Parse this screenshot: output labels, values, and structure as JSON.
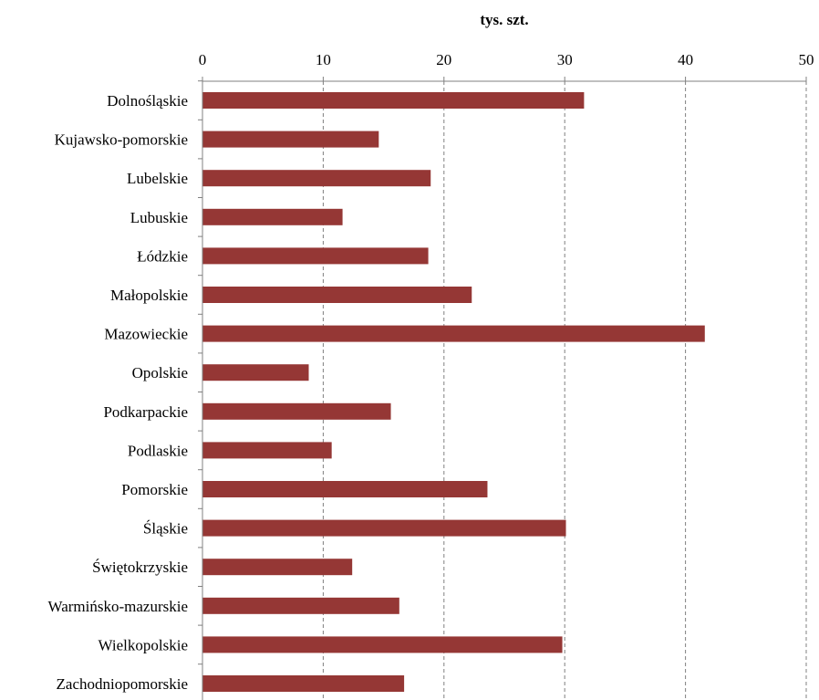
{
  "chart_data": {
    "type": "bar",
    "orientation": "horizontal",
    "xlabel": "tys. szt.",
    "xlim": [
      0,
      50
    ],
    "xticks": [
      "0",
      "10",
      "20",
      "30",
      "40",
      "50"
    ],
    "grid": "vertical dashed",
    "bar_color": "#953735",
    "categories": [
      "Dolnośląskie",
      "Kujawsko-pomorskie",
      "Lubelskie",
      "Lubuskie",
      "Łódzkie",
      "Małopolskie",
      "Mazowieckie",
      "Opolskie",
      "Podkarpackie",
      "Podlaskie",
      "Pomorskie",
      "Śląskie",
      "Świętokrzyskie",
      "Warmińsko-mazurskie",
      "Wielkopolskie",
      "Zachodniopomorskie"
    ],
    "values": [
      31.6,
      14.6,
      18.9,
      11.6,
      18.7,
      22.3,
      41.6,
      8.8,
      15.6,
      10.7,
      23.6,
      30.1,
      12.4,
      16.3,
      29.8,
      16.7
    ]
  }
}
